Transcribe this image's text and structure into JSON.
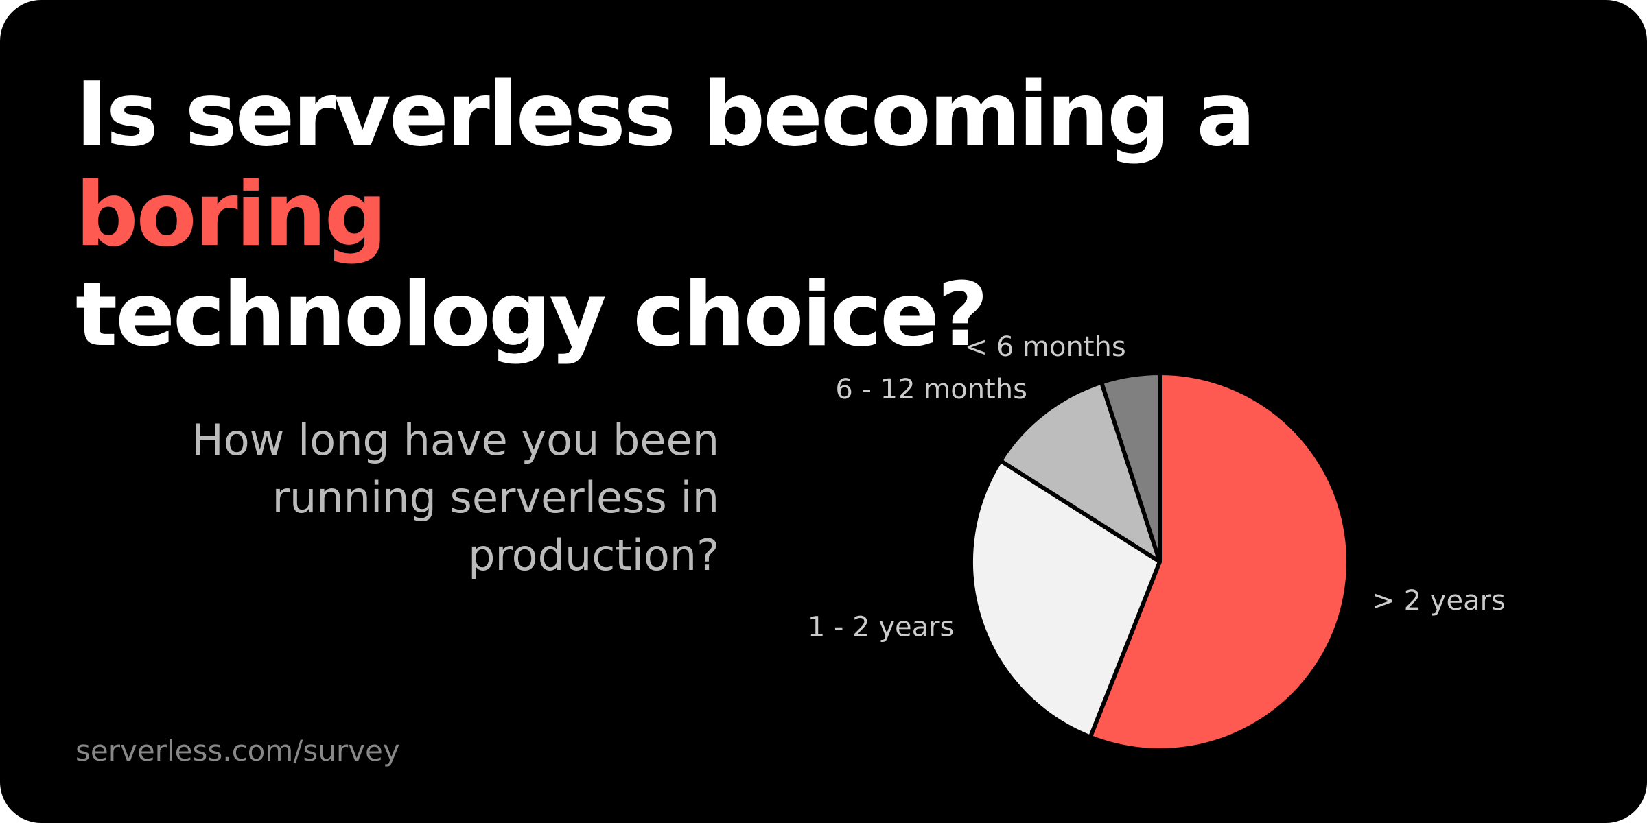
{
  "chart_data": {
    "type": "pie",
    "title": {
      "before": "Is serverless becoming a",
      "highlight": "boring",
      "after": "technology choice?"
    },
    "subtitle": "How long have you been running serverless in production?",
    "footer": "serverless.com/survey",
    "categories": [
      "> 2 years",
      "1 - 2 years",
      "6 - 12 months",
      "< 6 months"
    ],
    "values": [
      56,
      28,
      11,
      5
    ],
    "colors": [
      "#ff5a52",
      "#f2f2f2",
      "#bdbdbd",
      "#808080"
    ]
  }
}
